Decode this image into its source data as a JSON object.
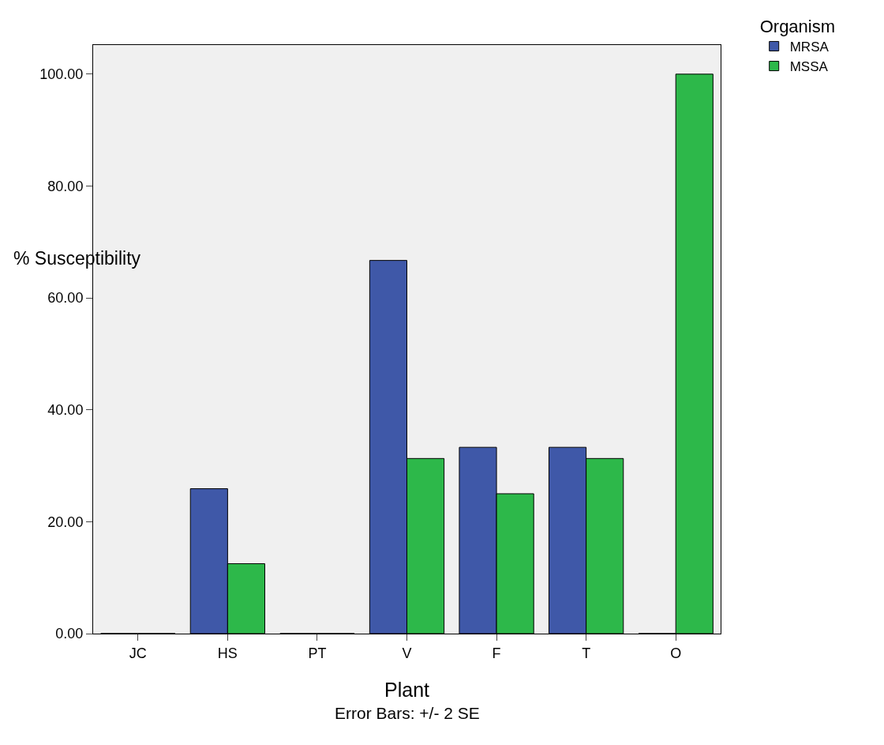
{
  "chart_data": {
    "type": "bar",
    "xlabel": "Plant",
    "ylabel": "% Susceptibility",
    "legend_title": "Organism",
    "categories": [
      "JC",
      "HS",
      "PT",
      "V",
      "F",
      "T",
      "O"
    ],
    "series": [
      {
        "name": "MRSA",
        "color": "#3f58a8",
        "values": [
          0,
          25.9,
          0,
          66.7,
          33.3,
          33.3,
          0
        ]
      },
      {
        "name": "MSSA",
        "color": "#2db84a",
        "values": [
          0,
          12.5,
          0,
          31.3,
          25.0,
          31.3,
          100
        ]
      }
    ],
    "ylim": [
      0,
      105.2
    ],
    "yticks": [
      {
        "value": 0,
        "label": "0.00"
      },
      {
        "value": 20,
        "label": "20.00"
      },
      {
        "value": 40,
        "label": "40.00"
      },
      {
        "value": 60,
        "label": "60.00"
      },
      {
        "value": 80,
        "label": "80.00"
      },
      {
        "value": 100,
        "label": "100.00"
      }
    ],
    "grid": false,
    "legend": "top right",
    "annotations": [
      "Error Bars: +/- 2 SE"
    ]
  }
}
